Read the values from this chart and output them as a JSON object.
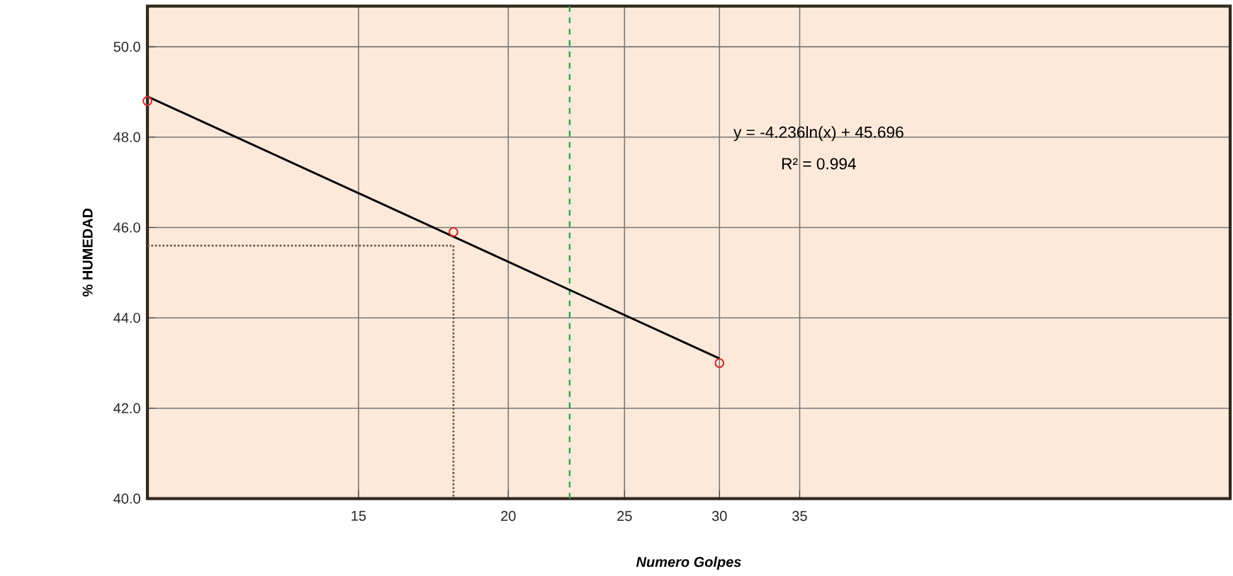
{
  "chart_data": {
    "type": "line",
    "xlabel": "Numero  Golpes",
    "ylabel": "% HUMEDAD",
    "log": "x",
    "grid": true,
    "xlim": [
      10,
      80
    ],
    "ylim": [
      40,
      50.9
    ],
    "xticks": [
      15,
      20,
      25,
      30,
      35
    ],
    "yticks": [
      {
        "value": 40,
        "label": "40.0"
      },
      {
        "value": 42,
        "label": "42.0"
      },
      {
        "value": 44,
        "label": "44.0"
      },
      {
        "value": 46,
        "label": "46.0"
      },
      {
        "value": 48,
        "label": "48.0"
      },
      {
        "value": 50,
        "label": "50.0"
      }
    ],
    "series": [
      {
        "color": "#000000",
        "x": [
          10,
          30
        ],
        "values": [
          48.9,
          43.1
        ],
        "marker": "none",
        "line_style": "solid"
      },
      {
        "color": "#6b5a45",
        "x": [
          10,
          18
        ],
        "values": [
          45.6,
          45.6
        ],
        "marker": "none",
        "line_style": "dotted"
      },
      {
        "color": "#6b5a45",
        "x": [
          18,
          18
        ],
        "values": [
          45.6,
          40
        ],
        "marker": "none",
        "line_style": "dotted"
      },
      {
        "type": "scatter",
        "color": "#d03030",
        "x": [
          10,
          18,
          30
        ],
        "values": [
          48.8,
          45.9,
          43.0
        ],
        "marker": "circle"
      }
    ],
    "ref_lines": [
      {
        "axis": "x",
        "value": 22.5,
        "color": "#22aa44",
        "line_style": "dashed"
      }
    ],
    "annotations": [
      "y = -4.236ln(x) + 45.696",
      "R² = 0.994"
    ]
  }
}
